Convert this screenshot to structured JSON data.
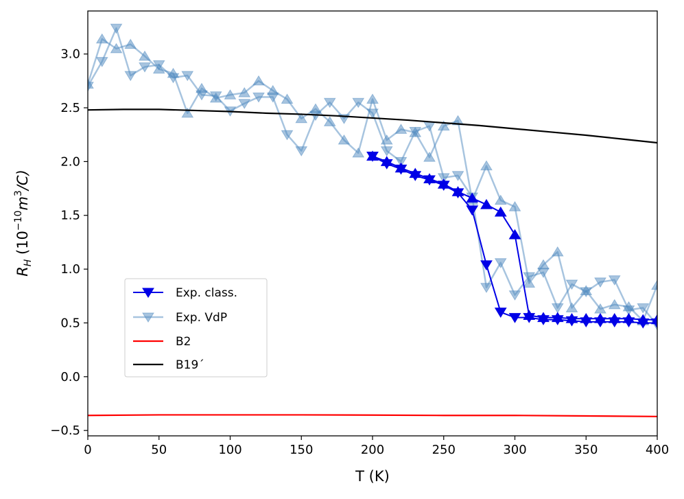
{
  "chart_data": {
    "type": "line",
    "title": "",
    "xlabel": "T (K)",
    "ylabel_main": "R",
    "ylabel_sub": "H",
    "ylabel_unit_pre": " (10",
    "ylabel_exp": "−10",
    "ylabel_m": "m",
    "ylabel_m_exp": "3",
    "ylabel_unit_post": "/C)",
    "xlim": [
      0,
      400
    ],
    "ylim": [
      -0.55,
      3.4
    ],
    "xticks": [
      0,
      50,
      100,
      150,
      200,
      250,
      300,
      350,
      400
    ],
    "yticks": [
      -0.5,
      0.0,
      0.5,
      1.0,
      1.5,
      2.0,
      2.5,
      3.0
    ],
    "xtick_labels": [
      "0",
      "50",
      "100",
      "150",
      "200",
      "250",
      "300",
      "350",
      "400"
    ],
    "ytick_labels": [
      "−0.5",
      "0.0",
      "0.5",
      "1.0",
      "1.5",
      "2.0",
      "2.5",
      "3.0"
    ],
    "legend": {
      "location": "center-left",
      "entries": [
        "Exp. class.",
        "Exp. VdP",
        "B2",
        "B19´"
      ]
    },
    "series": [
      {
        "name": "Exp. VdP",
        "key": "vdp",
        "color": "#4f8ac0",
        "opacity": 0.5,
        "subseries": [
          {
            "direction": "cooling",
            "marker": "triangle-down",
            "x": [
              0,
              10,
              20,
              30,
              40,
              50,
              60,
              70,
              80,
              90,
              100,
              110,
              120,
              130,
              140,
              150,
              160,
              170,
              180,
              190,
              200,
              210,
              220,
              230,
              240,
              250,
              260,
              270,
              280,
              290,
              300,
              310,
              320,
              330,
              340,
              350,
              360,
              370,
              380,
              390,
              400
            ],
            "y": [
              2.7,
              2.93,
              3.24,
              2.8,
              2.88,
              2.9,
              2.78,
              2.8,
              2.62,
              2.61,
              2.47,
              2.54,
              2.6,
              2.6,
              2.25,
              2.1,
              2.43,
              2.55,
              2.4,
              2.55,
              2.45,
              2.1,
              2.0,
              2.28,
              2.33,
              1.85,
              1.87,
              1.67,
              0.83,
              1.06,
              0.76,
              0.93,
              0.97,
              0.64,
              0.86,
              0.79,
              0.88,
              0.9,
              0.62,
              0.64,
              0.48
            ]
          },
          {
            "direction": "heating",
            "marker": "triangle-up",
            "x": [
              0,
              10,
              20,
              30,
              40,
              50,
              60,
              70,
              80,
              90,
              100,
              110,
              120,
              130,
              140,
              150,
              160,
              170,
              180,
              190,
              200,
              210,
              220,
              230,
              240,
              250,
              260,
              270,
              280,
              290,
              300,
              310,
              320,
              330,
              340,
              350,
              360,
              370,
              380,
              390,
              400
            ],
            "y": [
              2.72,
              3.14,
              3.05,
              3.09,
              2.98,
              2.86,
              2.82,
              2.45,
              2.68,
              2.59,
              2.62,
              2.64,
              2.75,
              2.66,
              2.58,
              2.4,
              2.49,
              2.37,
              2.2,
              2.08,
              2.58,
              2.2,
              2.3,
              2.27,
              2.04,
              2.33,
              2.38,
              1.64,
              1.96,
              1.64,
              1.58,
              0.87,
              1.04,
              1.16,
              0.64,
              0.8,
              0.63,
              0.67,
              0.65,
              0.52,
              0.85
            ]
          }
        ]
      },
      {
        "name": "Exp. class.",
        "key": "classic",
        "color": "#0000e6",
        "opacity": 1,
        "subseries": [
          {
            "direction": "cooling",
            "marker": "triangle-down",
            "x": [
              200,
              210,
              220,
              230,
              240,
              250,
              260,
              270,
              280,
              290,
              300,
              310,
              320,
              330,
              340,
              350,
              360,
              370,
              380,
              390,
              400
            ],
            "y": [
              2.05,
              1.98,
              1.93,
              1.87,
              1.83,
              1.78,
              1.71,
              1.55,
              1.04,
              0.6,
              0.55,
              0.55,
              0.53,
              0.53,
              0.52,
              0.51,
              0.51,
              0.51,
              0.51,
              0.5,
              0.5
            ]
          },
          {
            "direction": "heating",
            "marker": "triangle-up",
            "x": [
              200,
              210,
              220,
              230,
              240,
              250,
              260,
              270,
              280,
              290,
              300,
              310,
              320,
              330,
              340,
              350,
              360,
              370,
              380,
              390,
              400
            ],
            "y": [
              2.05,
              2.0,
              1.94,
              1.89,
              1.84,
              1.79,
              1.72,
              1.66,
              1.6,
              1.53,
              1.32,
              0.57,
              0.55,
              0.55,
              0.54,
              0.54,
              0.54,
              0.54,
              0.54,
              0.53,
              0.53
            ]
          }
        ]
      },
      {
        "name": "B2",
        "key": "b2",
        "color": "#ff0000",
        "marker": "none",
        "x": [
          0,
          50,
          100,
          150,
          200,
          250,
          300,
          350,
          400
        ],
        "y": [
          -0.36,
          -0.355,
          -0.355,
          -0.355,
          -0.357,
          -0.36,
          -0.36,
          -0.365,
          -0.37
        ]
      },
      {
        "name": "B19´",
        "key": "b19",
        "color": "#000000",
        "marker": "none",
        "x": [
          0,
          25,
          50,
          75,
          100,
          125,
          150,
          175,
          200,
          225,
          250,
          275,
          300,
          325,
          350,
          375,
          400
        ],
        "y": [
          2.48,
          2.485,
          2.485,
          2.475,
          2.465,
          2.45,
          2.44,
          2.425,
          2.405,
          2.385,
          2.36,
          2.335,
          2.305,
          2.275,
          2.245,
          2.21,
          2.175
        ]
      }
    ]
  }
}
